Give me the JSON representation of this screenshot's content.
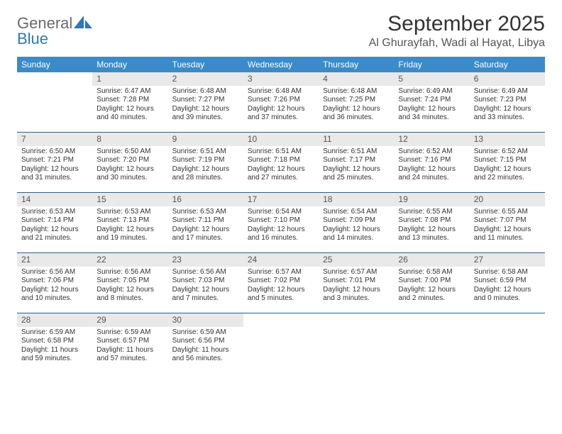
{
  "brand": {
    "word1": "General",
    "word2": "Blue"
  },
  "title": "September 2025",
  "subtitle": "Al Ghurayfah, Wadi al Hayat, Libya",
  "header_bg": "#3b8bc9",
  "rule_color": "#2f5e88",
  "daynum_bg": "#e9e9e9",
  "weekdays": [
    "Sunday",
    "Monday",
    "Tuesday",
    "Wednesday",
    "Thursday",
    "Friday",
    "Saturday"
  ],
  "weeks": [
    [
      null,
      {
        "n": "1",
        "sr": "Sunrise: 6:47 AM",
        "ss": "Sunset: 7:28 PM",
        "d1": "Daylight: 12 hours",
        "d2": "and 40 minutes."
      },
      {
        "n": "2",
        "sr": "Sunrise: 6:48 AM",
        "ss": "Sunset: 7:27 PM",
        "d1": "Daylight: 12 hours",
        "d2": "and 39 minutes."
      },
      {
        "n": "3",
        "sr": "Sunrise: 6:48 AM",
        "ss": "Sunset: 7:26 PM",
        "d1": "Daylight: 12 hours",
        "d2": "and 37 minutes."
      },
      {
        "n": "4",
        "sr": "Sunrise: 6:48 AM",
        "ss": "Sunset: 7:25 PM",
        "d1": "Daylight: 12 hours",
        "d2": "and 36 minutes."
      },
      {
        "n": "5",
        "sr": "Sunrise: 6:49 AM",
        "ss": "Sunset: 7:24 PM",
        "d1": "Daylight: 12 hours",
        "d2": "and 34 minutes."
      },
      {
        "n": "6",
        "sr": "Sunrise: 6:49 AM",
        "ss": "Sunset: 7:23 PM",
        "d1": "Daylight: 12 hours",
        "d2": "and 33 minutes."
      }
    ],
    [
      {
        "n": "7",
        "sr": "Sunrise: 6:50 AM",
        "ss": "Sunset: 7:21 PM",
        "d1": "Daylight: 12 hours",
        "d2": "and 31 minutes."
      },
      {
        "n": "8",
        "sr": "Sunrise: 6:50 AM",
        "ss": "Sunset: 7:20 PM",
        "d1": "Daylight: 12 hours",
        "d2": "and 30 minutes."
      },
      {
        "n": "9",
        "sr": "Sunrise: 6:51 AM",
        "ss": "Sunset: 7:19 PM",
        "d1": "Daylight: 12 hours",
        "d2": "and 28 minutes."
      },
      {
        "n": "10",
        "sr": "Sunrise: 6:51 AM",
        "ss": "Sunset: 7:18 PM",
        "d1": "Daylight: 12 hours",
        "d2": "and 27 minutes."
      },
      {
        "n": "11",
        "sr": "Sunrise: 6:51 AM",
        "ss": "Sunset: 7:17 PM",
        "d1": "Daylight: 12 hours",
        "d2": "and 25 minutes."
      },
      {
        "n": "12",
        "sr": "Sunrise: 6:52 AM",
        "ss": "Sunset: 7:16 PM",
        "d1": "Daylight: 12 hours",
        "d2": "and 24 minutes."
      },
      {
        "n": "13",
        "sr": "Sunrise: 6:52 AM",
        "ss": "Sunset: 7:15 PM",
        "d1": "Daylight: 12 hours",
        "d2": "and 22 minutes."
      }
    ],
    [
      {
        "n": "14",
        "sr": "Sunrise: 6:53 AM",
        "ss": "Sunset: 7:14 PM",
        "d1": "Daylight: 12 hours",
        "d2": "and 21 minutes."
      },
      {
        "n": "15",
        "sr": "Sunrise: 6:53 AM",
        "ss": "Sunset: 7:13 PM",
        "d1": "Daylight: 12 hours",
        "d2": "and 19 minutes."
      },
      {
        "n": "16",
        "sr": "Sunrise: 6:53 AM",
        "ss": "Sunset: 7:11 PM",
        "d1": "Daylight: 12 hours",
        "d2": "and 17 minutes."
      },
      {
        "n": "17",
        "sr": "Sunrise: 6:54 AM",
        "ss": "Sunset: 7:10 PM",
        "d1": "Daylight: 12 hours",
        "d2": "and 16 minutes."
      },
      {
        "n": "18",
        "sr": "Sunrise: 6:54 AM",
        "ss": "Sunset: 7:09 PM",
        "d1": "Daylight: 12 hours",
        "d2": "and 14 minutes."
      },
      {
        "n": "19",
        "sr": "Sunrise: 6:55 AM",
        "ss": "Sunset: 7:08 PM",
        "d1": "Daylight: 12 hours",
        "d2": "and 13 minutes."
      },
      {
        "n": "20",
        "sr": "Sunrise: 6:55 AM",
        "ss": "Sunset: 7:07 PM",
        "d1": "Daylight: 12 hours",
        "d2": "and 11 minutes."
      }
    ],
    [
      {
        "n": "21",
        "sr": "Sunrise: 6:56 AM",
        "ss": "Sunset: 7:06 PM",
        "d1": "Daylight: 12 hours",
        "d2": "and 10 minutes."
      },
      {
        "n": "22",
        "sr": "Sunrise: 6:56 AM",
        "ss": "Sunset: 7:05 PM",
        "d1": "Daylight: 12 hours",
        "d2": "and 8 minutes."
      },
      {
        "n": "23",
        "sr": "Sunrise: 6:56 AM",
        "ss": "Sunset: 7:03 PM",
        "d1": "Daylight: 12 hours",
        "d2": "and 7 minutes."
      },
      {
        "n": "24",
        "sr": "Sunrise: 6:57 AM",
        "ss": "Sunset: 7:02 PM",
        "d1": "Daylight: 12 hours",
        "d2": "and 5 minutes."
      },
      {
        "n": "25",
        "sr": "Sunrise: 6:57 AM",
        "ss": "Sunset: 7:01 PM",
        "d1": "Daylight: 12 hours",
        "d2": "and 3 minutes."
      },
      {
        "n": "26",
        "sr": "Sunrise: 6:58 AM",
        "ss": "Sunset: 7:00 PM",
        "d1": "Daylight: 12 hours",
        "d2": "and 2 minutes."
      },
      {
        "n": "27",
        "sr": "Sunrise: 6:58 AM",
        "ss": "Sunset: 6:59 PM",
        "d1": "Daylight: 12 hours",
        "d2": "and 0 minutes."
      }
    ],
    [
      {
        "n": "28",
        "sr": "Sunrise: 6:59 AM",
        "ss": "Sunset: 6:58 PM",
        "d1": "Daylight: 11 hours",
        "d2": "and 59 minutes."
      },
      {
        "n": "29",
        "sr": "Sunrise: 6:59 AM",
        "ss": "Sunset: 6:57 PM",
        "d1": "Daylight: 11 hours",
        "d2": "and 57 minutes."
      },
      {
        "n": "30",
        "sr": "Sunrise: 6:59 AM",
        "ss": "Sunset: 6:56 PM",
        "d1": "Daylight: 11 hours",
        "d2": "and 56 minutes."
      },
      null,
      null,
      null,
      null
    ]
  ]
}
